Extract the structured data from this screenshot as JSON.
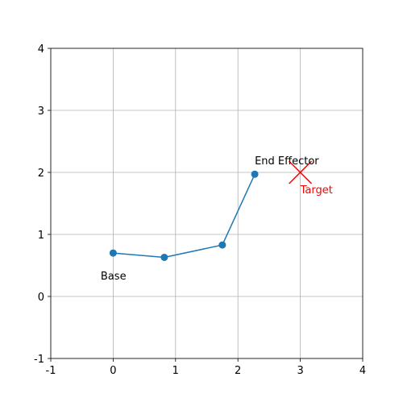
{
  "chart_data": {
    "type": "line",
    "title": "",
    "xlabel": "",
    "ylabel": "",
    "xlim": [
      -1,
      4
    ],
    "ylim": [
      -1,
      4
    ],
    "x_ticks": [
      "-1",
      "0",
      "1",
      "2",
      "3",
      "4"
    ],
    "y_ticks": [
      "-1",
      "0",
      "1",
      "2",
      "3",
      "4"
    ],
    "grid": true,
    "series": [
      {
        "x": [
          0.0,
          0.82,
          1.75,
          2.27
        ],
        "y": [
          0.7,
          0.63,
          0.83,
          1.97
        ],
        "markers": true
      }
    ],
    "target": {
      "x": 3.0,
      "y": 2.0,
      "marker": "x"
    },
    "annotations": [
      {
        "text": "Base",
        "x": -0.2,
        "y": 0.27
      },
      {
        "text": "End Effector",
        "x": 2.27,
        "y": 2.13
      },
      {
        "text": "Target",
        "x": 3.0,
        "y": 1.66
      }
    ]
  },
  "colors": {
    "series": "#1f77b4",
    "target": "#ff0000",
    "grid": "#b0b0b0",
    "axis": "#000000"
  }
}
